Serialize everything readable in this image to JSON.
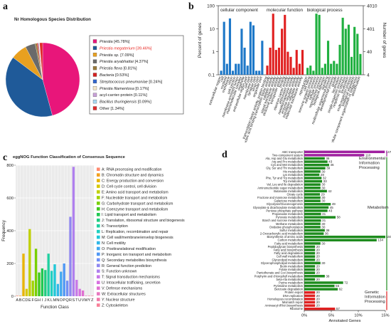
{
  "panels": {
    "a": {
      "letter": "a"
    },
    "b": {
      "letter": "b"
    },
    "c": {
      "letter": "c"
    },
    "d": {
      "letter": "d"
    }
  },
  "chart_data": [
    {
      "id": "a",
      "type": "pie",
      "title": "Nr Homologous Species Distribution",
      "legend_position": "right",
      "slices": [
        {
          "label": "Priestia",
          "pct_label": "[45.78%]",
          "value": 45.78,
          "color": "#e8167a",
          "italic": true,
          "label_color": "#222222"
        },
        {
          "label": "Priestia megaterium",
          "pct_label": "[39.46%]",
          "value": 39.46,
          "color": "#1f5a99",
          "italic": true,
          "label_color": "#e8251f"
        },
        {
          "label": "Priestia sp.",
          "pct_label": "[7.09%]",
          "value": 7.09,
          "color": "#e8a020",
          "italic": true,
          "label_color": "#222222"
        },
        {
          "label": "Priestia aryabhattai",
          "pct_label": "[4.37%]",
          "value": 4.37,
          "color": "#6a6a6a",
          "italic": true,
          "label_color": "#222222"
        },
        {
          "label": "Priestia flexa",
          "pct_label": "[0.81%]",
          "value": 0.81,
          "color": "#9a7a3a",
          "italic": true,
          "label_color": "#222222"
        },
        {
          "label": "Bacteria",
          "pct_label": "[0.53%]",
          "value": 0.53,
          "color": "#d62020",
          "italic": true,
          "label_color": "#222222"
        },
        {
          "label": "Streptococcus pneumoniae",
          "pct_label": "[0.24%]",
          "value": 0.24,
          "color": "#3366cc",
          "italic": true,
          "label_color": "#222222"
        },
        {
          "label": "Priestia filamentosa",
          "pct_label": "[0.17%]",
          "value": 0.17,
          "color": "#f5e6c8",
          "italic": true,
          "label_color": "#222222"
        },
        {
          "label": "acyl-carrier-protein",
          "pct_label": "[0.11%]",
          "value": 0.11,
          "color": "#c8a0d8",
          "italic": false,
          "label_color": "#222222"
        },
        {
          "label": "Bacillus thuringiensis",
          "pct_label": "[0.09%]",
          "value": 0.09,
          "color": "#a8d8f0",
          "italic": true,
          "label_color": "#222222"
        },
        {
          "label": "Other",
          "pct_label": "[1.34%]",
          "value": 1.34,
          "color": "#e02a2a",
          "italic": false,
          "label_color": "#222222"
        }
      ]
    },
    {
      "id": "b",
      "type": "bar",
      "ylabel_left": "Percent of genes",
      "ylabel_right": "Number of genes",
      "y_log": true,
      "ylim": [
        0.1,
        100
      ],
      "left_ticks": [
        "100",
        "10",
        "1",
        "0.1"
      ],
      "right_ticks": [
        "4010",
        "401",
        "40",
        "4"
      ],
      "groups": [
        {
          "name": "cellular component",
          "color": "#1e78c8",
          "categories": [
            "extracellular region",
            "cell",
            "nucleoid",
            "membrane",
            "virion",
            "cell junction",
            "membrane-enclosed lumen",
            "macromolecular complex",
            "organelle",
            "extracellular region part",
            "cell part",
            "membrane part",
            "synapse part",
            "virion part",
            "organelle part"
          ],
          "values": [
            0.15,
            20,
            0.3,
            28,
            0.15,
            0.3,
            0.3,
            10,
            1.5,
            0.25,
            20,
            14,
            0.15,
            0.15,
            3
          ]
        },
        {
          "name": "molecular function",
          "color": "#e02020",
          "categories": [
            "transcription factor activity, protein binding",
            "nucleic acid binding transcription factor activity",
            "catalytic activity",
            "signal transducer activity",
            "structural molecule activity",
            "transporter activity",
            "binding",
            "electron carrier activity",
            "antioxidant activity",
            "metallochaperone activity",
            "enzyme regulator activity",
            "translation regulator activity",
            "molecular transducer activity"
          ],
          "values": [
            0.25,
            1.5,
            45,
            1.2,
            1.5,
            10,
            40,
            1.0,
            0.6,
            0.2,
            1.2,
            0.3,
            1.2
          ]
        },
        {
          "name": "biological process",
          "color": "#20b040",
          "categories": [
            "reproduction",
            "cell killing",
            "immune system process",
            "metabolic process",
            "cellular process",
            "reproductive process",
            "biological adhesion",
            "signaling",
            "multicellular organismal process",
            "developmental process",
            "growth",
            "locomotion",
            "single-organism process",
            "response to stimulus",
            "localization",
            "multi-organism process",
            "biological regulation",
            "cellular component organization or biogenesis",
            "detoxification"
          ],
          "values": [
            0.2,
            0.25,
            0.15,
            45,
            40,
            0.2,
            0.3,
            3,
            0.3,
            0.4,
            0.3,
            2,
            30,
            10,
            15,
            0.6,
            12,
            6,
            0.8
          ]
        }
      ]
    },
    {
      "id": "c",
      "type": "bar",
      "title": "eggNOG Function Classification of Consensus Sequence",
      "xlabel": "Function Class",
      "ylabel": "Frequency",
      "ylim": [
        0,
        800
      ],
      "yticks": [
        0,
        200,
        400,
        600,
        800
      ],
      "grid": true,
      "legend_position": "right",
      "categories": [
        "A",
        "B",
        "C",
        "D",
        "E",
        "F",
        "G",
        "H",
        "I",
        "J",
        "K",
        "L",
        "M",
        "N",
        "O",
        "P",
        "Q",
        "R",
        "S",
        "T",
        "U",
        "V",
        "W",
        "Y",
        "Z"
      ],
      "tick_labels": [
        "A",
        "B",
        "C",
        "D",
        "E",
        "F",
        "G",
        "H",
        "I",
        "J",
        "K",
        "L",
        "M",
        "N",
        "O",
        "P",
        "Q",
        "R",
        "S",
        "T",
        "U",
        "V",
        "W",
        "Y",
        "Z"
      ],
      "values": [
        3,
        3,
        260,
        45,
        410,
        95,
        290,
        145,
        170,
        160,
        260,
        155,
        195,
        75,
        150,
        200,
        95,
        485,
        790,
        100,
        45,
        35,
        3,
        3,
        3
      ],
      "colors": [
        "#ff8a70",
        "#f2a020",
        "#e8b400",
        "#d8c800",
        "#c0d000",
        "#a0d400",
        "#78d000",
        "#40c820",
        "#20c850",
        "#20cc80",
        "#20d0a0",
        "#20d0c0",
        "#20c8d8",
        "#30b8e8",
        "#40a8f0",
        "#5098f5",
        "#7090f5",
        "#9088f0",
        "#b080ee",
        "#c878e8",
        "#d870e0",
        "#e070d0",
        "#e878c0",
        "#f078a8",
        "#f88098"
      ],
      "legend": [
        "A: RNA processing and modification",
        "B: Chromatin structure and dynamics",
        "C: Energy production and conversion",
        "D: Cell cycle control, cell division",
        "E: Amino acid transport and metabolism",
        "F: Nucleotide transport and metabolism",
        "G: Carbohydrate transport and metabolism",
        "H: Coenzyme transport and metabolism",
        "I: Lipid transport and metabolism",
        "J: Translation, ribosomal structure and biogenesis",
        "K: Transcription",
        "L: Replication, recombination and repair",
        "M: Cell wall/membrane/envelop biogenesis",
        "N: Cell motility",
        "O: Posttranslational modification",
        "P: Inorganic ion transport and metabolism",
        "Q: Secondary metabolites biosynthesis",
        "R: General function prediction",
        "S: Function unknown",
        "T: Signal transduction mechanisms",
        "U: Intracellular trafficking, secretion",
        "V: Defense mechanisms",
        "W: Extracellular structures",
        "Y: Nuclear structure",
        "Z: Cytoskeleton"
      ]
    },
    {
      "id": "d",
      "type": "bar",
      "orientation": "horizontal",
      "xlabel": "Annotated Genes",
      "xlim": [
        0,
        15
      ],
      "xticks": [
        "0%",
        "5%",
        "10%",
        "15%"
      ],
      "rows": [
        {
          "label": "ABC transporter",
          "value": 147,
          "pct": 14.9,
          "group": 0
        },
        {
          "label": "Two-component system",
          "value": 110,
          "pct": 11.1,
          "group": 0
        },
        {
          "label": "Ala, Asp and Glu metabolism",
          "value": 38,
          "pct": 3.8,
          "group": 1
        },
        {
          "label": "Arg and Pro metabolism",
          "value": 43,
          "pct": 4.3,
          "group": 1
        },
        {
          "label": "Cys and Met metabolism",
          "value": 46,
          "pct": 4.6,
          "group": 1
        },
        {
          "label": "Gly, Ser and Thr metabolism",
          "value": 39,
          "pct": 3.9,
          "group": 1
        },
        {
          "label": "His metabolism",
          "value": 30,
          "pct": 3.0,
          "group": 1
        },
        {
          "label": "Lys metabolism",
          "value": 28,
          "pct": 2.8,
          "group": 1
        },
        {
          "label": "Phe, Tyr and Trp metabolism",
          "value": 32,
          "pct": 3.2,
          "group": 1
        },
        {
          "label": "Trp metabolism",
          "value": 33,
          "pct": 3.3,
          "group": 1
        },
        {
          "label": "Val, Leu and Ile degradation",
          "value": 30,
          "pct": 3.0,
          "group": 1
        },
        {
          "label": "Aminonucleotide sugar metabolism",
          "value": 30,
          "pct": 3.0,
          "group": 1
        },
        {
          "label": "Butanoate metabolism",
          "value": 42,
          "pct": 4.2,
          "group": 1
        },
        {
          "label": "Citrate cycle",
          "value": 29,
          "pct": 2.9,
          "group": 1
        },
        {
          "label": "Fructose and mannose metabolism",
          "value": 30,
          "pct": 3.0,
          "group": 1
        },
        {
          "label": "Galactose metabolism",
          "value": 30,
          "pct": 3.0,
          "group": 1
        },
        {
          "label": "Glycolysis/Gluconeogenesis",
          "value": 49,
          "pct": 4.9,
          "group": 1
        },
        {
          "label": "Glyoxylate & dicarboxylate metabolism",
          "value": 45,
          "pct": 4.5,
          "group": 1
        },
        {
          "label": "Pentose phosphate pathway",
          "value": 43,
          "pct": 4.3,
          "group": 1
        },
        {
          "label": "Propanoate metabolism",
          "value": 31,
          "pct": 3.1,
          "group": 1
        },
        {
          "label": "Pyruvate metabolism",
          "value": 58,
          "pct": 5.8,
          "group": 1
        },
        {
          "label": "Starch and sucrose metabolism",
          "value": 31,
          "pct": 3.1,
          "group": 1
        },
        {
          "label": "Methane metabolism",
          "value": 30,
          "pct": 3.0,
          "group": 1
        },
        {
          "label": "Oxidative phosphorylation",
          "value": 30,
          "pct": 3.0,
          "group": 1
        },
        {
          "label": "Sulfur metabolism",
          "value": 38,
          "pct": 3.8,
          "group": 1
        },
        {
          "label": "2-Oxocarboxylic acid metabolism",
          "value": 36,
          "pct": 3.6,
          "group": 1
        },
        {
          "label": "Biosynthesis of amino acids",
          "value": 150,
          "pct": 15.0,
          "group": 1
        },
        {
          "label": "Carbon metabolism",
          "value": 134,
          "pct": 13.4,
          "group": 1
        },
        {
          "label": "Fatty acid metabolism",
          "value": 30,
          "pct": 3.0,
          "group": 1
        },
        {
          "label": "Peptidoglycan biosynthesis",
          "value": 20,
          "pct": 2.0,
          "group": 1
        },
        {
          "label": "Fatty acid biosynthesis",
          "value": 20,
          "pct": 2.0,
          "group": 1
        },
        {
          "label": "Fatty acid degradation",
          "value": 20,
          "pct": 2.0,
          "group": 1
        },
        {
          "label": "Cell wall metabolism",
          "value": 20,
          "pct": 2.0,
          "group": 1
        },
        {
          "label": "Glycerolipid metabolism",
          "value": 20,
          "pct": 2.0,
          "group": 1
        },
        {
          "label": "Glycerophospholipid metabolism",
          "value": 30,
          "pct": 3.0,
          "group": 1
        },
        {
          "label": "Biotin metabolism",
          "value": 20,
          "pct": 2.0,
          "group": 1
        },
        {
          "label": "Folate metabolism",
          "value": 20,
          "pct": 2.0,
          "group": 1
        },
        {
          "label": "Pantothenate and CoA biosynthesis",
          "value": 20,
          "pct": 2.0,
          "group": 1
        },
        {
          "label": "Porphyrin and chlorophyll metabolism",
          "value": 38,
          "pct": 3.8,
          "group": 1
        },
        {
          "label": "beta-Ala metabolism",
          "value": 20,
          "pct": 2.0,
          "group": 1
        },
        {
          "label": "Purine metabolism",
          "value": 72,
          "pct": 7.2,
          "group": 1
        },
        {
          "label": "Pyrimidine metabolism",
          "value": 56,
          "pct": 5.6,
          "group": 1
        },
        {
          "label": "Benzoate degradation",
          "value": 62,
          "pct": 6.2,
          "group": 1
        },
        {
          "label": "Protein export",
          "value": 20,
          "pct": 2.0,
          "group": 2
        },
        {
          "label": "DNA replication",
          "value": 20,
          "pct": 2.0,
          "group": 2
        },
        {
          "label": "Homologous recombination",
          "value": 20,
          "pct": 2.0,
          "group": 2
        },
        {
          "label": "Mismatch repair",
          "value": 20,
          "pct": 2.0,
          "group": 2
        },
        {
          "label": "Aminoacyl-tRNA biosynthesis",
          "value": 20,
          "pct": 2.0,
          "group": 2
        },
        {
          "label": "Ribosome",
          "value": 57,
          "pct": 5.7,
          "group": 2
        }
      ],
      "groups": [
        {
          "name": "Environmental Information Processing",
          "lines": [
            "Environmental",
            "Information",
            "Processing"
          ],
          "color": "#a020a0"
        },
        {
          "name": "Metabolism",
          "lines": [
            "Metabolism"
          ],
          "color": "#1e8c1e"
        },
        {
          "name": "Genetic Information Processing",
          "lines": [
            "Genetic",
            "Information",
            "Processing"
          ],
          "color": "#e02020"
        }
      ]
    }
  ]
}
